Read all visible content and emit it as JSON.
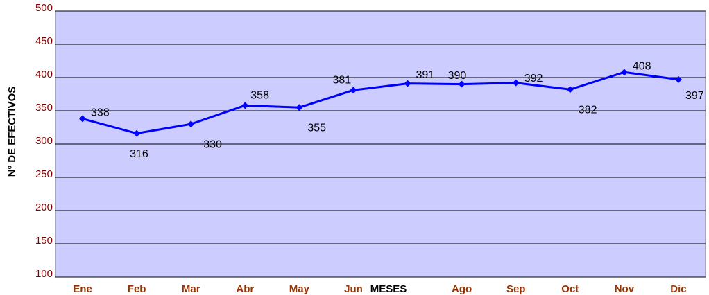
{
  "chart_data": {
    "type": "line",
    "x_label": "MESES",
    "y_label": "Nº DE EFECTIVOS",
    "categories": [
      "Ene",
      "Feb",
      "Mar",
      "Abr",
      "May",
      "Jun",
      null,
      "Ago",
      "Sep",
      "Oct",
      "Nov",
      "Dic"
    ],
    "series": [
      {
        "name": "Efectivos",
        "color": "#0000ff",
        "values": [
          338,
          316,
          330,
          358,
          355,
          381,
          391,
          390,
          392,
          382,
          408,
          397
        ]
      }
    ],
    "ylim": [
      100,
      500
    ],
    "yticks": [
      100,
      150,
      200,
      250,
      300,
      350,
      400,
      450,
      500
    ],
    "grid": true,
    "plot_background": "#ccccff"
  }
}
